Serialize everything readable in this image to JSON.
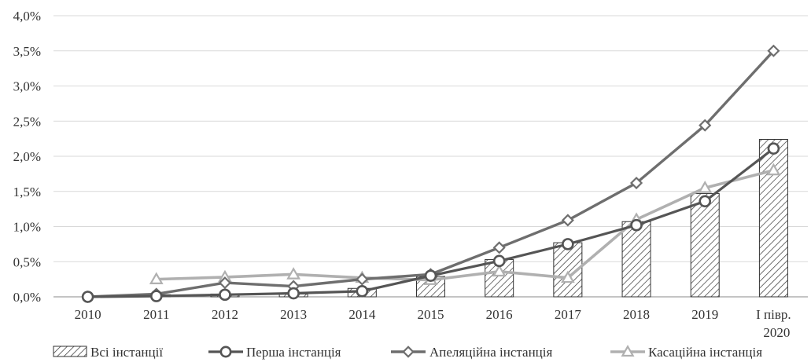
{
  "chart_data": {
    "type": "bar",
    "categories": [
      "2010",
      "2011",
      "2012",
      "2013",
      "2014",
      "2015",
      "2016",
      "2017",
      "2018",
      "2019",
      "I півр. 2020"
    ],
    "y_ticks": [
      "0,0%",
      "0,5%",
      "1,0%",
      "1,5%",
      "2,0%",
      "2,5%",
      "3,0%",
      "3,5%",
      "4,0%"
    ],
    "ylim": [
      0,
      4.0
    ],
    "grid": true,
    "legend_position": "bottom",
    "series": [
      {
        "name": "Всі інстанції",
        "type": "bar",
        "values": [
          0.0,
          0.03,
          0.04,
          0.04,
          0.12,
          0.29,
          0.53,
          0.77,
          1.07,
          1.47,
          2.24
        ]
      },
      {
        "name": "Перша інстанція",
        "type": "line",
        "marker": "circle",
        "values": [
          0.0,
          0.01,
          0.03,
          0.05,
          0.08,
          0.3,
          0.51,
          0.75,
          1.02,
          1.36,
          2.11
        ]
      },
      {
        "name": "Апеляційна інстанція",
        "type": "line",
        "marker": "diamond",
        "values": [
          0.0,
          0.04,
          0.2,
          0.15,
          0.25,
          0.32,
          0.7,
          1.09,
          1.62,
          2.44,
          3.5
        ]
      },
      {
        "name": "Касаційна інстанція",
        "type": "line",
        "marker": "triangle",
        "values": [
          null,
          0.25,
          0.28,
          0.32,
          0.27,
          0.24,
          0.36,
          0.27,
          1.1,
          1.55,
          1.8
        ]
      }
    ],
    "colors": {
      "bar_stroke": "#333333",
      "first": "#555555",
      "appeal": "#6e6e6e",
      "cassation": "#b0b0b0",
      "grid": "#d9d9d9"
    }
  }
}
